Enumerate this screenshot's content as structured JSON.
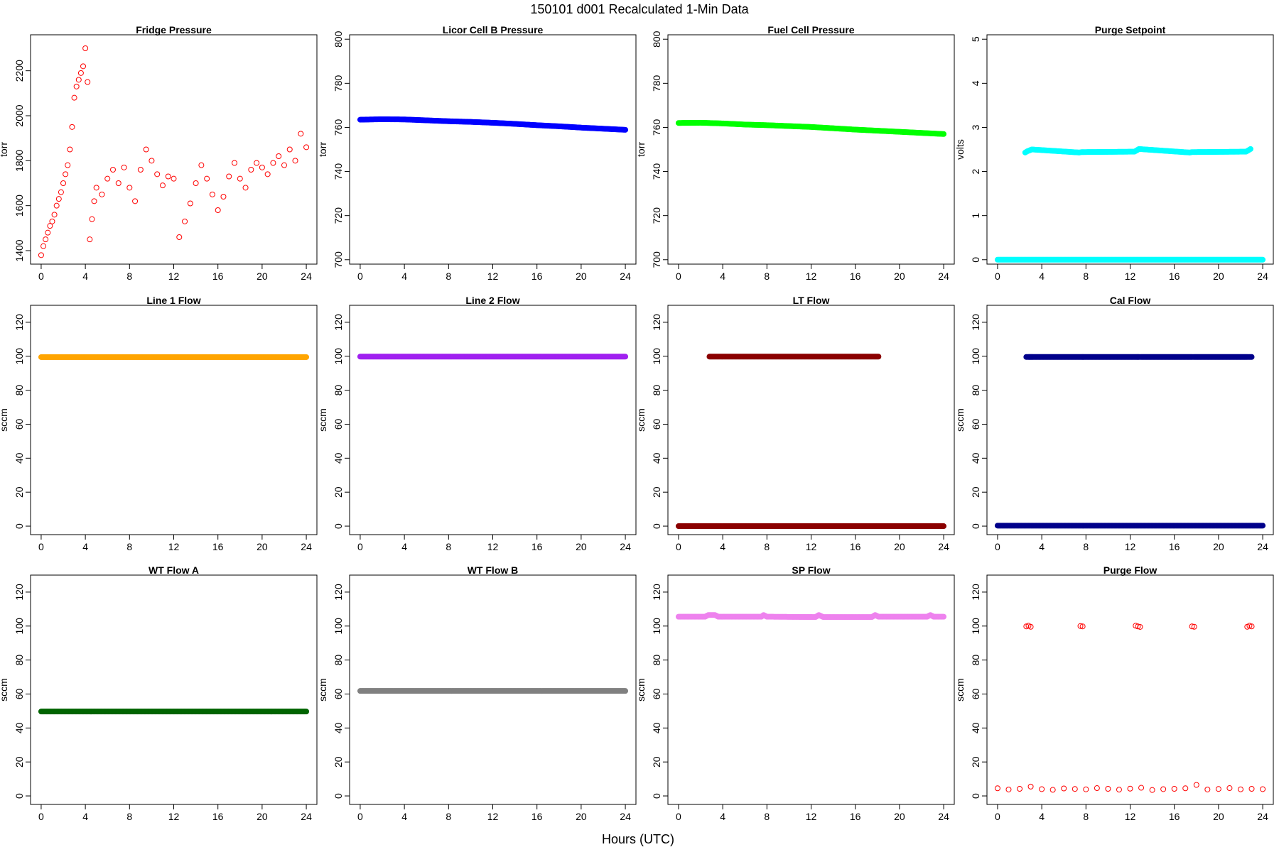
{
  "figure": {
    "title": "150101    d001    Recalculated 1-Min Data",
    "xlabel": "Hours (UTC)"
  },
  "chart_data": [
    {
      "type": "scatter",
      "title": "Fridge Pressure",
      "xlabel": "",
      "ylabel": "torr",
      "xlim": [
        -0.96,
        24.96
      ],
      "ylim": [
        1340,
        2360
      ],
      "xticks": [
        "0",
        "4",
        "8",
        "12",
        "16",
        "20",
        "24"
      ],
      "yticks": [
        "1400",
        "1600",
        "1800",
        "2000",
        "2200"
      ],
      "color": "#ff0000",
      "marker": "open",
      "series": [
        {
          "name": "",
          "x": [
            0.0,
            0.2,
            0.4,
            0.6,
            0.8,
            1.0,
            1.2,
            1.4,
            1.6,
            1.8,
            2.0,
            2.2,
            2.4,
            2.6,
            2.8,
            3.0,
            3.2,
            3.4,
            3.6,
            3.8,
            4.0,
            4.2,
            4.4,
            4.6,
            4.8,
            5.0,
            5.5,
            6.0,
            6.5,
            7.0,
            7.5,
            8.0,
            8.5,
            9.0,
            9.5,
            10.0,
            10.5,
            11.0,
            11.5,
            12.0,
            12.5,
            13.0,
            13.5,
            14.0,
            14.5,
            15.0,
            15.5,
            16.0,
            16.5,
            17.0,
            17.5,
            18.0,
            18.5,
            19.0,
            19.5,
            20.0,
            20.5,
            21.0,
            21.5,
            22.0,
            22.5,
            23.0,
            23.5,
            24.0
          ],
          "y": [
            1380,
            1420,
            1450,
            1480,
            1510,
            1530,
            1560,
            1600,
            1630,
            1660,
            1700,
            1740,
            1780,
            1850,
            1950,
            2080,
            2130,
            2160,
            2190,
            2220,
            2300,
            2150,
            1450,
            1540,
            1620,
            1680,
            1650,
            1720,
            1760,
            1700,
            1770,
            1680,
            1620,
            1760,
            1850,
            1800,
            1740,
            1690,
            1730,
            1720,
            1460,
            1530,
            1610,
            1700,
            1780,
            1720,
            1650,
            1580,
            1640,
            1730,
            1790,
            1720,
            1680,
            1760,
            1790,
            1770,
            1740,
            1790,
            1820,
            1780,
            1850,
            1800,
            1920,
            1860
          ]
        }
      ]
    },
    {
      "type": "scatter",
      "title": "Licor Cell B Pressure",
      "xlabel": "",
      "ylabel": "torr",
      "xlim": [
        -0.96,
        24.96
      ],
      "ylim": [
        698,
        802
      ],
      "xticks": [
        "0",
        "4",
        "8",
        "12",
        "16",
        "20",
        "24"
      ],
      "yticks": [
        "700",
        "720",
        "740",
        "760",
        "780",
        "800"
      ],
      "color": "#0000ff",
      "marker": "dense",
      "series": [
        {
          "name": "",
          "x": [
            0,
            2,
            4,
            6,
            8,
            10,
            12,
            14,
            16,
            18,
            20,
            22,
            24
          ],
          "y": [
            763.5,
            763.7,
            763.6,
            763.2,
            762.8,
            762.5,
            762.1,
            761.6,
            761.0,
            760.5,
            759.9,
            759.4,
            758.9
          ]
        }
      ]
    },
    {
      "type": "scatter",
      "title": "Fuel Cell Pressure",
      "xlabel": "",
      "ylabel": "torr",
      "xlim": [
        -0.96,
        24.96
      ],
      "ylim": [
        698,
        802
      ],
      "xticks": [
        "0",
        "4",
        "8",
        "12",
        "16",
        "20",
        "24"
      ],
      "yticks": [
        "700",
        "720",
        "740",
        "760",
        "780",
        "800"
      ],
      "color": "#00ff00",
      "marker": "dense",
      "series": [
        {
          "name": "",
          "x": [
            0,
            2,
            4,
            6,
            8,
            10,
            12,
            14,
            16,
            18,
            20,
            22,
            24
          ],
          "y": [
            762.0,
            762.1,
            761.8,
            761.3,
            761.0,
            760.6,
            760.2,
            759.6,
            759.0,
            758.5,
            758.0,
            757.5,
            757.0
          ]
        }
      ]
    },
    {
      "type": "scatter",
      "title": "Purge Setpoint",
      "xlabel": "",
      "ylabel": "volts",
      "xlim": [
        -0.96,
        24.96
      ],
      "ylim": [
        -0.1,
        5.1
      ],
      "xticks": [
        "0",
        "4",
        "8",
        "12",
        "16",
        "20",
        "24"
      ],
      "yticks": [
        "0",
        "1",
        "2",
        "3",
        "4",
        "5"
      ],
      "color": "#00ffff",
      "marker": "dense",
      "series": [
        {
          "name": "",
          "x": [
            0,
            4,
            8,
            12,
            16,
            20,
            24
          ],
          "y": [
            0,
            0,
            0,
            0,
            0,
            0,
            0
          ]
        },
        {
          "name": "",
          "x": [
            2.5,
            2.7,
            2.9,
            3.1,
            7.4,
            7.6,
            7.8,
            12.4,
            12.6,
            12.8,
            17.4,
            17.6,
            17.8,
            22.5,
            22.7,
            22.9
          ],
          "y": [
            2.43,
            2.46,
            2.48,
            2.5,
            2.43,
            2.44,
            2.44,
            2.45,
            2.48,
            2.51,
            2.43,
            2.44,
            2.44,
            2.45,
            2.48,
            2.51
          ]
        }
      ]
    },
    {
      "type": "scatter",
      "title": "Line 1 Flow",
      "xlabel": "",
      "ylabel": "sccm",
      "xlim": [
        -0.96,
        24.96
      ],
      "ylim": [
        -5,
        130
      ],
      "xticks": [
        "0",
        "4",
        "8",
        "12",
        "16",
        "20",
        "24"
      ],
      "yticks": [
        "0",
        "20",
        "40",
        "60",
        "80",
        "100",
        "120"
      ],
      "color": "#ffa500",
      "marker": "dense",
      "series": [
        {
          "name": "",
          "x": [
            0,
            24
          ],
          "y": [
            99.5,
            99.5
          ]
        }
      ]
    },
    {
      "type": "scatter",
      "title": "Line 2 Flow",
      "xlabel": "",
      "ylabel": "sccm",
      "xlim": [
        -0.96,
        24.96
      ],
      "ylim": [
        -5,
        130
      ],
      "xticks": [
        "0",
        "4",
        "8",
        "12",
        "16",
        "20",
        "24"
      ],
      "yticks": [
        "0",
        "20",
        "40",
        "60",
        "80",
        "100",
        "120"
      ],
      "color": "#a020f0",
      "marker": "dense",
      "series": [
        {
          "name": "",
          "x": [
            0,
            24
          ],
          "y": [
            99.8,
            99.8
          ]
        }
      ]
    },
    {
      "type": "scatter",
      "title": "LT Flow",
      "xlabel": "",
      "ylabel": "sccm",
      "xlim": [
        -0.96,
        24.96
      ],
      "ylim": [
        -5,
        130
      ],
      "xticks": [
        "0",
        "4",
        "8",
        "12",
        "16",
        "20",
        "24"
      ],
      "yticks": [
        "0",
        "20",
        "40",
        "60",
        "80",
        "100",
        "120"
      ],
      "color": "#8b0000",
      "marker": "dense",
      "series": [
        {
          "name": "",
          "x": [
            0,
            24
          ],
          "y": [
            0,
            0
          ]
        },
        {
          "name": "",
          "x": [
            2.8,
            2.95,
            3.1,
            17.8,
            17.95,
            18.1
          ],
          "y": [
            99.8,
            99.8,
            99.8,
            99.8,
            99.8,
            99.8
          ]
        }
      ]
    },
    {
      "type": "scatter",
      "title": "Cal Flow",
      "xlabel": "",
      "ylabel": "sccm",
      "xlim": [
        -0.96,
        24.96
      ],
      "ylim": [
        -5,
        130
      ],
      "xticks": [
        "0",
        "4",
        "8",
        "12",
        "16",
        "20",
        "24"
      ],
      "yticks": [
        "0",
        "20",
        "40",
        "60",
        "80",
        "100",
        "120"
      ],
      "color": "#00008b",
      "marker": "dense",
      "series": [
        {
          "name": "",
          "x": [
            0,
            24
          ],
          "y": [
            0.3,
            0.3
          ]
        },
        {
          "name": "",
          "x": [
            2.6,
            2.8,
            3.0,
            3.2,
            7.6,
            7.8,
            12.6,
            12.8,
            13.0,
            17.6,
            17.8,
            22.6,
            22.8,
            23.0
          ],
          "y": [
            99.6,
            99.6,
            99.6,
            99.6,
            99.6,
            99.6,
            99.6,
            99.6,
            99.6,
            99.6,
            99.6,
            99.6,
            99.6,
            99.6
          ]
        }
      ]
    },
    {
      "type": "scatter",
      "title": "WT Flow A",
      "xlabel": "",
      "ylabel": "sccm",
      "xlim": [
        -0.96,
        24.96
      ],
      "ylim": [
        -5,
        130
      ],
      "xticks": [
        "0",
        "4",
        "8",
        "12",
        "16",
        "20",
        "24"
      ],
      "yticks": [
        "0",
        "20",
        "40",
        "60",
        "80",
        "100",
        "120"
      ],
      "color": "#006400",
      "marker": "dense",
      "series": [
        {
          "name": "",
          "x": [
            0,
            24
          ],
          "y": [
            49.7,
            49.7
          ]
        }
      ]
    },
    {
      "type": "scatter",
      "title": "WT Flow B",
      "xlabel": "",
      "ylabel": "sccm",
      "xlim": [
        -0.96,
        24.96
      ],
      "ylim": [
        -5,
        130
      ],
      "xticks": [
        "0",
        "4",
        "8",
        "12",
        "16",
        "20",
        "24"
      ],
      "yticks": [
        "0",
        "20",
        "40",
        "60",
        "80",
        "100",
        "120"
      ],
      "color": "#808080",
      "marker": "dense",
      "series": [
        {
          "name": "",
          "x": [
            0,
            24
          ],
          "y": [
            61.8,
            61.8
          ]
        }
      ]
    },
    {
      "type": "scatter",
      "title": "SP Flow",
      "xlabel": "",
      "ylabel": "sccm",
      "xlim": [
        -0.96,
        24.96
      ],
      "ylim": [
        -5,
        130
      ],
      "xticks": [
        "0",
        "4",
        "8",
        "12",
        "16",
        "20",
        "24"
      ],
      "yticks": [
        "0",
        "20",
        "40",
        "60",
        "80",
        "100",
        "120"
      ],
      "color": "#ee82ee",
      "marker": "dense",
      "series": [
        {
          "name": "",
          "x": [
            0,
            2.4,
            2.7,
            3.3,
            3.6,
            7.5,
            7.7,
            8.0,
            12.4,
            12.7,
            13.1,
            17.5,
            17.8,
            18.1,
            22.5,
            22.8,
            23.1,
            24
          ],
          "y": [
            105.5,
            105.5,
            106.5,
            106.5,
            105.5,
            105.5,
            106.5,
            105.5,
            105.3,
            106.5,
            105.3,
            105.3,
            106.5,
            105.5,
            105.5,
            106.5,
            105.5,
            105.5
          ]
        }
      ]
    },
    {
      "type": "scatter",
      "title": "Purge Flow",
      "xlabel": "",
      "ylabel": "sccm",
      "xlim": [
        -0.96,
        24.96
      ],
      "ylim": [
        -5,
        130
      ],
      "xticks": [
        "0",
        "4",
        "8",
        "12",
        "16",
        "20",
        "24"
      ],
      "yticks": [
        "0",
        "20",
        "40",
        "60",
        "80",
        "100",
        "120"
      ],
      "color": "#ff0000",
      "marker": "open",
      "series": [
        {
          "name": "",
          "x": [
            0,
            1,
            2,
            3,
            4,
            5,
            6,
            7,
            8,
            9,
            10,
            11,
            12,
            13,
            14,
            15,
            16,
            17,
            18,
            19,
            20,
            21,
            22,
            23,
            24
          ],
          "y": [
            4.5,
            3.8,
            4.2,
            5.5,
            4.0,
            3.6,
            4.4,
            4.1,
            3.9,
            4.6,
            4.2,
            3.7,
            4.3,
            4.8,
            3.5,
            4.0,
            4.2,
            4.5,
            6.5,
            3.8,
            4.1,
            4.6,
            3.9,
            4.2,
            4.0
          ]
        },
        {
          "name": "",
          "x": [
            2.6,
            2.8,
            3.0,
            7.5,
            7.7,
            12.5,
            12.7,
            12.9,
            17.6,
            17.8,
            22.6,
            22.8,
            23.0
          ],
          "y": [
            99.8,
            100.2,
            99.6,
            100.0,
            99.8,
            100.2,
            99.8,
            99.5,
            99.8,
            99.6,
            99.6,
            100.2,
            99.8
          ]
        }
      ]
    }
  ]
}
